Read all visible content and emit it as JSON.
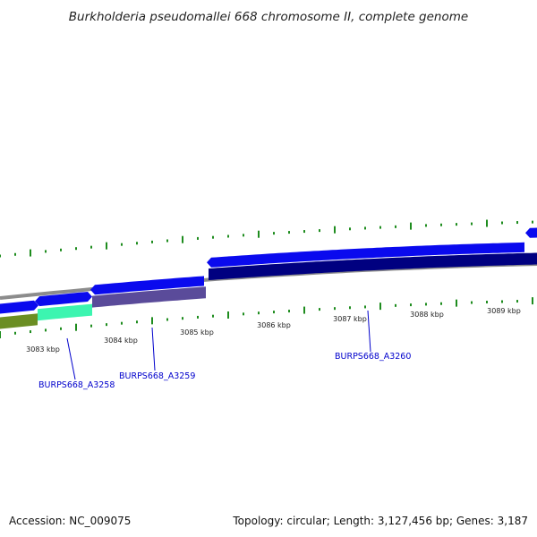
{
  "title": "Burkholderia pseudomallei 668 chromosome II, complete genome",
  "footer": {
    "accession": "Accession: NC_009075",
    "summary": "Topology: circular; Length: 3,127,456 bp; Genes: 3,187"
  },
  "ruler": {
    "labels": [
      "3083 kbp",
      "3084 kbp",
      "3085 kbp",
      "3086 kbp",
      "3087 kbp",
      "3088 kbp",
      "3089 kbp"
    ]
  },
  "genes": [
    {
      "label": "BURPS668_A3258"
    },
    {
      "label": "BURPS668_A3259"
    },
    {
      "label": "BURPS668_A3260"
    }
  ],
  "colors": {
    "backbone": "#8c8c8c",
    "forward_gene": "#0a0aee",
    "reverse_dark": "#000080",
    "olive_feature": "#6b8e23",
    "aquamarine_feature": "#3cf5b0",
    "slate_feature": "#5a4b9a",
    "gc_tick": "#1e8c1e",
    "label_line": "#0000cc"
  }
}
